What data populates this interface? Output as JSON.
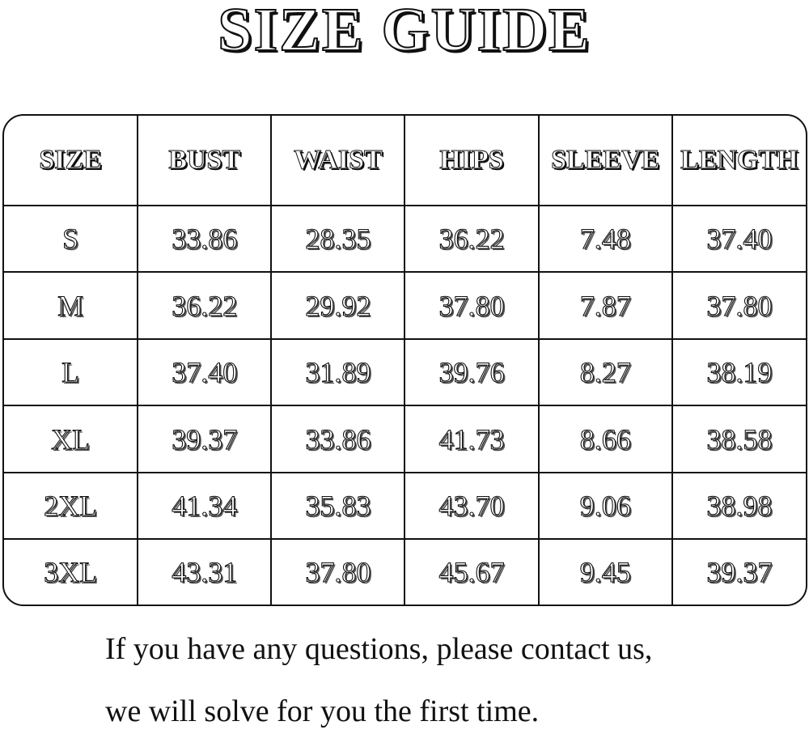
{
  "title": "SIZE GUIDE",
  "table": {
    "headers": [
      "SIZE",
      "BUST",
      "WAIST",
      "HIPS",
      "SLEEVE",
      "LENGTH"
    ],
    "rows": [
      [
        "S",
        "33.86",
        "28.35",
        "36.22",
        "7.48",
        "37.40"
      ],
      [
        "M",
        "36.22",
        "29.92",
        "37.80",
        "7.87",
        "37.80"
      ],
      [
        "L",
        "37.40",
        "31.89",
        "39.76",
        "8.27",
        "38.19"
      ],
      [
        "XL",
        "39.37",
        "33.86",
        "41.73",
        "8.66",
        "38.58"
      ],
      [
        "2XL",
        "41.34",
        "35.83",
        "43.70",
        "9.06",
        "38.98"
      ],
      [
        "3XL",
        "43.31",
        "37.80",
        "45.67",
        "9.45",
        "39.37"
      ]
    ]
  },
  "footer": {
    "line1": "If you have any questions, please contact us,",
    "line2": "we will solve for you the first time."
  }
}
